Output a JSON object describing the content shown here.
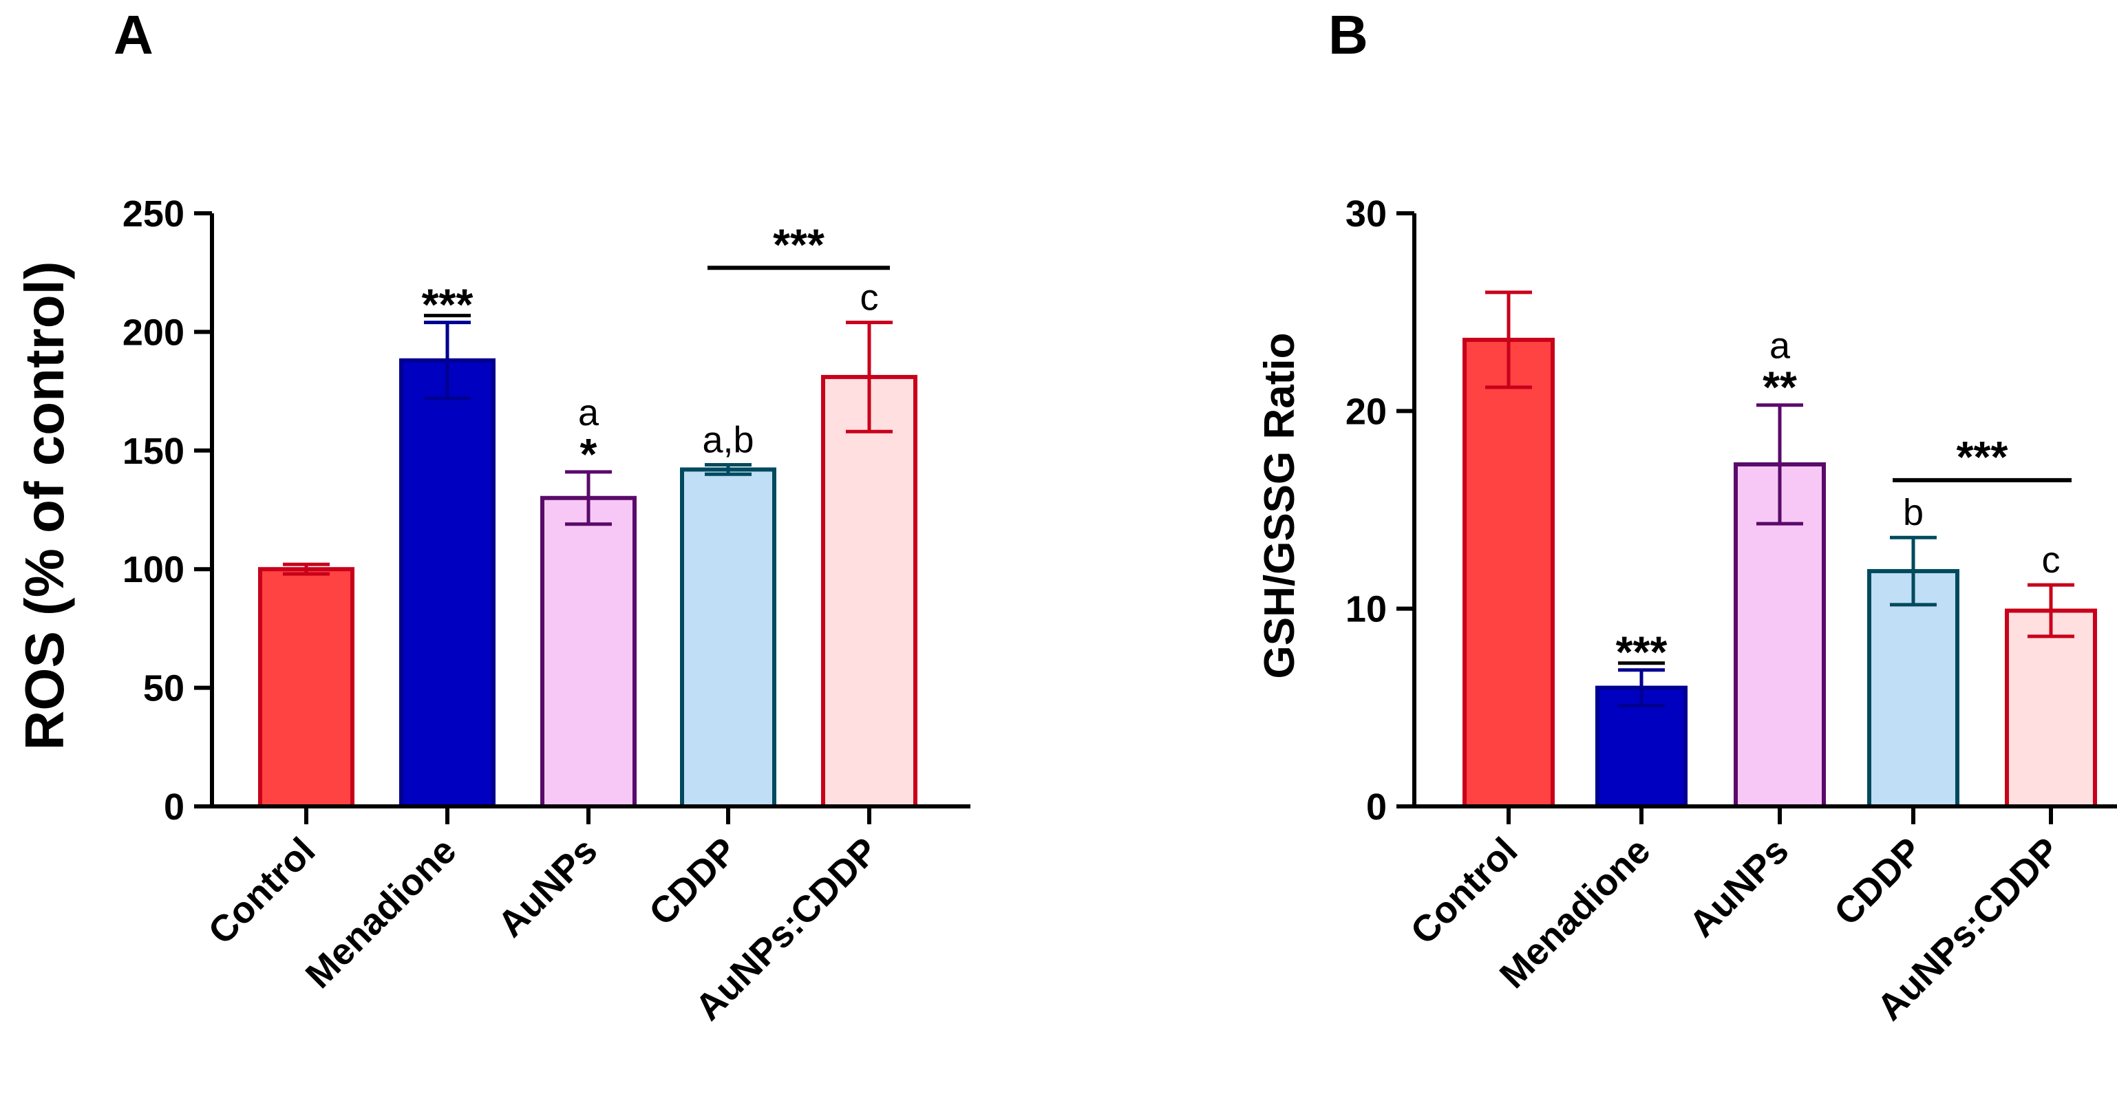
{
  "chart_data": [
    {
      "panel": "A",
      "type": "bar",
      "ylabel": "ROS (% of control)",
      "xlabel": "",
      "ylim": [
        0,
        250
      ],
      "yticks": [
        0,
        50,
        100,
        150,
        200,
        250
      ],
      "categories": [
        "Control",
        "Menadione",
        "AuNPs",
        "CDDP",
        "AuNPs:CDDP"
      ],
      "values": [
        100,
        188,
        130,
        142,
        181
      ],
      "errors": [
        2,
        16,
        11,
        2,
        23
      ],
      "fill_colors": [
        "#ff4242",
        "#0000c0",
        "#f7c8f5",
        "#c0def5",
        "#ffdfe0"
      ],
      "edge_colors": [
        "#c8001a",
        "#000090",
        "#5a0a6a",
        "#004a5e",
        "#c8001a"
      ],
      "annotations": [
        {
          "category": "Menadione",
          "text": "***"
        },
        {
          "category": "AuNPs",
          "text": "*"
        },
        {
          "category": "AuNPs",
          "text": "a"
        },
        {
          "category": "CDDP",
          "text": "a,b"
        },
        {
          "category": "AuNPs:CDDP",
          "text": "c"
        }
      ],
      "bracket": {
        "from": "CDDP",
        "to": "AuNPs:CDDP",
        "value": 227,
        "text": "***"
      }
    },
    {
      "panel": "B",
      "type": "bar",
      "ylabel": "GSH/GSSG Ratio",
      "xlabel": "",
      "ylim": [
        0,
        30
      ],
      "yticks": [
        0,
        10,
        20,
        30
      ],
      "categories": [
        "Control",
        "Menadione",
        "AuNPs",
        "CDDP",
        "AuNPs:CDDP"
      ],
      "values": [
        23.6,
        6.0,
        17.3,
        11.9,
        9.9
      ],
      "errors": [
        2.4,
        0.9,
        3.0,
        1.7,
        1.3
      ],
      "fill_colors": [
        "#ff4242",
        "#0000c0",
        "#f7c8f5",
        "#c0def5",
        "#ffdfe0"
      ],
      "edge_colors": [
        "#c8001a",
        "#000090",
        "#5a0a6a",
        "#004a5e",
        "#c8001a"
      ],
      "annotations": [
        {
          "category": "Menadione",
          "text": "***"
        },
        {
          "category": "AuNPs",
          "text": "**"
        },
        {
          "category": "AuNPs",
          "text": "a"
        },
        {
          "category": "CDDP",
          "text": "b"
        },
        {
          "category": "AuNPs:CDDP",
          "text": "c"
        }
      ],
      "bracket": {
        "from": "CDDP",
        "to": "AuNPs:CDDP",
        "value": 16.5,
        "text": "***"
      }
    }
  ]
}
